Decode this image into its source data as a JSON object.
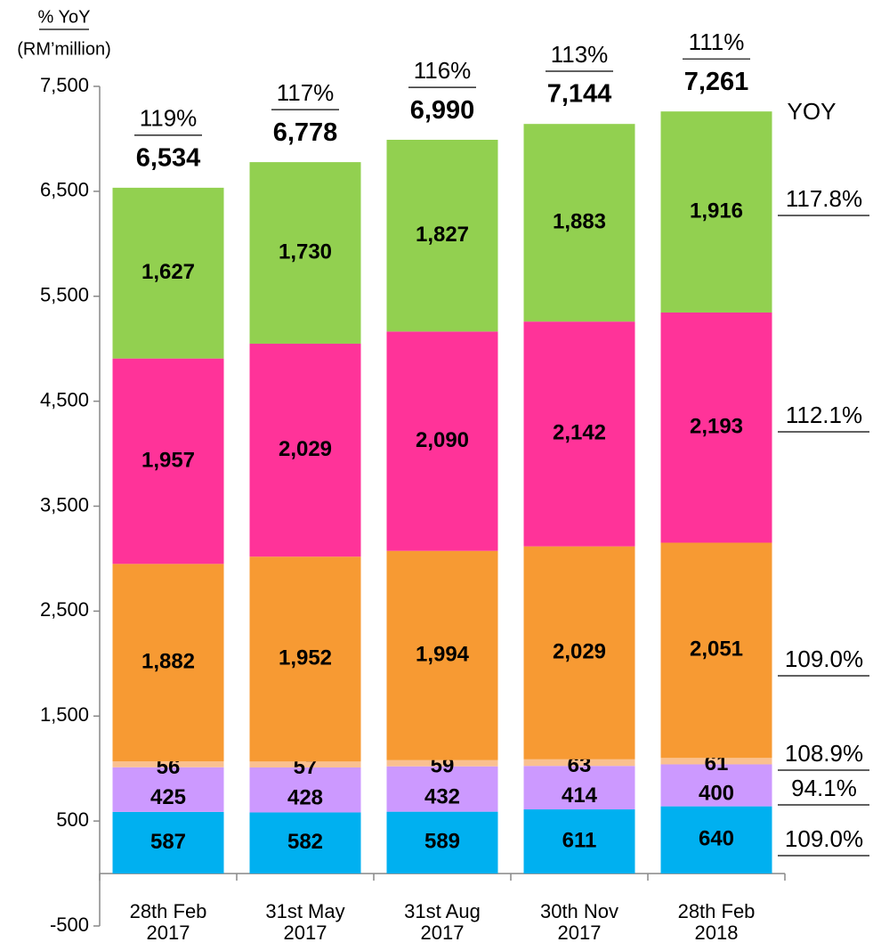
{
  "chart_data": {
    "type": "stacked_bar",
    "y_axis_title": "% YoY",
    "y_axis_unit": "(RM’million)",
    "yoy_header": "YOY",
    "categories": [
      [
        "28th Feb",
        "2017"
      ],
      [
        "31st May",
        "2017"
      ],
      [
        "31st Aug",
        "2017"
      ],
      [
        "30th Nov",
        "2017"
      ],
      [
        "28th Feb",
        "2018"
      ]
    ],
    "series": [
      {
        "color": "#00b0f0",
        "values": [
          587,
          582,
          589,
          611,
          640
        ],
        "value_labels": [
          "587",
          "582",
          "589",
          "611",
          "640"
        ],
        "yoy_label": "109.0%"
      },
      {
        "color": "#cc99ff",
        "values": [
          425,
          428,
          432,
          414,
          400
        ],
        "value_labels": [
          "425",
          "428",
          "432",
          "414",
          "400"
        ],
        "yoy_label": "94.1%"
      },
      {
        "color": "#fac090",
        "values": [
          56,
          57,
          59,
          63,
          61
        ],
        "value_labels": [
          "56",
          "57",
          "59",
          "63",
          "61"
        ],
        "yoy_label": "108.9%"
      },
      {
        "color": "#f79a33",
        "values": [
          1882,
          1952,
          1994,
          2029,
          2051
        ],
        "value_labels": [
          "1,882",
          "1,952",
          "1,994",
          "2,029",
          "2,051"
        ],
        "yoy_label": "109.0%"
      },
      {
        "color": "#ff3399",
        "values": [
          1957,
          2029,
          2090,
          2142,
          2193
        ],
        "value_labels": [
          "1,957",
          "2,029",
          "2,090",
          "2,142",
          "2,193"
        ],
        "yoy_label": "112.1%"
      },
      {
        "color": "#92d050",
        "values": [
          1627,
          1730,
          1827,
          1883,
          1916
        ],
        "value_labels": [
          "1,627",
          "1,730",
          "1,827",
          "1,883",
          "1,916"
        ],
        "yoy_label": "117.8%"
      }
    ],
    "totals": [
      6534,
      6778,
      6990,
      7144,
      7261
    ],
    "total_labels": [
      "6,534",
      "6,778",
      "6,990",
      "7,144",
      "7,261"
    ],
    "total_yoy_labels": [
      "119%",
      "117%",
      "116%",
      "113%",
      "111%"
    ],
    "ylim": [
      -500,
      7500
    ],
    "yticks": [
      -500,
      500,
      {
        "value": 1500,
        "label": "1,500"
      },
      {
        "value": 2500,
        "label": "2,500"
      },
      {
        "value": 3500,
        "label": "3,500"
      },
      {
        "value": 4500,
        "label": "4,500"
      },
      {
        "value": 5500,
        "label": "5,500"
      },
      {
        "value": 6500,
        "label": "6,500"
      },
      {
        "value": 7500,
        "label": "7,500"
      }
    ]
  }
}
